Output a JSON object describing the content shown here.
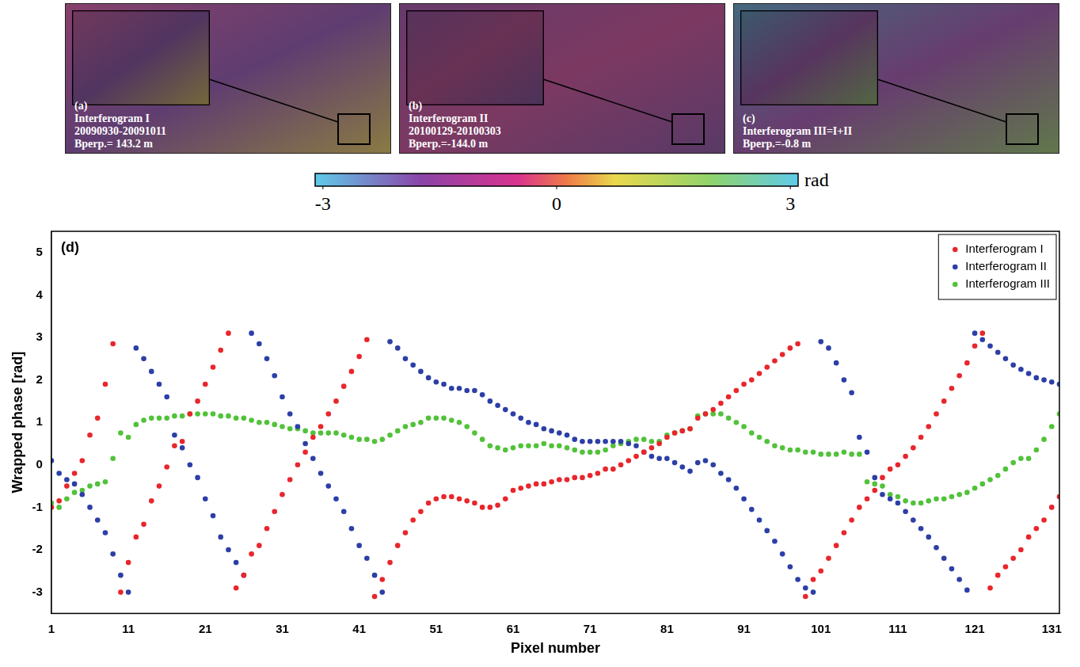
{
  "panels": [
    {
      "label": "(a)",
      "lines": [
        "Interferogram I",
        "20090930-20091011",
        "Bperp.= 143.2 m"
      ]
    },
    {
      "label": "(b)",
      "lines": [
        "Interferogram II",
        "20100129-20100303",
        "Bperp.=-144.0 m"
      ]
    },
    {
      "label": "(c)",
      "lines": [
        "Interferogram III=I+II",
        "Bperp.=-0.8 m"
      ]
    }
  ],
  "colorbar": {
    "range": [
      -3.1,
      3.1
    ],
    "ticks": [
      -3,
      0,
      3
    ],
    "label": "rad"
  },
  "chart_data": {
    "type": "scatter",
    "panel_label": "(d)",
    "x_label": "Pixel number",
    "y_label": "Wrapped phase [rad]",
    "x": [
      1,
      2,
      3,
      4,
      5,
      6,
      7,
      8,
      9,
      10,
      11,
      12,
      13,
      14,
      15,
      16,
      17,
      18,
      19,
      20,
      21,
      22,
      23,
      24,
      25,
      26,
      27,
      28,
      29,
      30,
      31,
      32,
      33,
      34,
      35,
      36,
      37,
      38,
      39,
      40,
      41,
      42,
      43,
      44,
      45,
      46,
      47,
      48,
      49,
      50,
      51,
      52,
      53,
      54,
      55,
      56,
      57,
      58,
      59,
      60,
      61,
      62,
      63,
      64,
      65,
      66,
      67,
      68,
      69,
      70,
      71,
      72,
      73,
      74,
      75,
      76,
      77,
      78,
      79,
      80,
      81,
      82,
      83,
      84,
      85,
      86,
      87,
      88,
      89,
      90,
      91,
      92,
      93,
      94,
      95,
      96,
      97,
      98,
      99,
      100,
      101,
      102,
      103,
      104,
      105,
      106,
      107,
      108,
      109,
      110,
      111,
      112,
      113,
      114,
      115,
      116,
      117,
      118,
      119,
      120,
      121,
      122,
      123,
      124,
      125,
      126,
      127,
      128,
      129,
      130,
      131,
      132
    ],
    "series": [
      {
        "name": "Interferogram I",
        "color": "#e8262c",
        "values": [
          -1.0,
          -0.85,
          -0.5,
          -0.2,
          0.1,
          0.7,
          1.1,
          1.9,
          2.85,
          -3.0,
          -2.3,
          -1.7,
          -1.4,
          -0.85,
          -0.5,
          -0.05,
          0.45,
          0.55,
          1.2,
          1.5,
          1.9,
          2.3,
          2.7,
          3.1,
          -2.9,
          -2.6,
          -2.1,
          -1.9,
          -1.5,
          -1.1,
          -0.7,
          -0.35,
          0.0,
          0.3,
          0.65,
          0.9,
          1.2,
          1.5,
          1.85,
          2.2,
          2.55,
          2.95,
          -3.1,
          -2.7,
          -2.3,
          -1.9,
          -1.6,
          -1.3,
          -1.1,
          -0.9,
          -0.8,
          -0.75,
          -0.75,
          -0.8,
          -0.85,
          -0.9,
          -1.0,
          -1.0,
          -0.95,
          -0.8,
          -0.6,
          -0.55,
          -0.5,
          -0.45,
          -0.45,
          -0.4,
          -0.35,
          -0.35,
          -0.3,
          -0.3,
          -0.25,
          -0.2,
          -0.1,
          -0.1,
          0.0,
          0.1,
          0.2,
          0.3,
          0.4,
          0.5,
          0.65,
          0.75,
          0.8,
          0.85,
          1.1,
          1.2,
          1.3,
          1.45,
          1.6,
          1.75,
          1.9,
          2.0,
          2.15,
          2.3,
          2.45,
          2.6,
          2.75,
          2.85,
          -3.1,
          -2.7,
          -2.5,
          -2.2,
          -1.9,
          -1.6,
          -1.3,
          -1.0,
          -0.8,
          -0.6,
          -0.3,
          -0.1,
          0.0,
          0.2,
          0.4,
          0.65,
          0.9,
          1.2,
          1.5,
          1.8,
          2.1,
          2.4,
          2.8,
          3.1,
          -2.9,
          -2.6,
          -2.4,
          -2.2,
          -2.0,
          -1.7,
          -1.5,
          -1.3,
          -1.0,
          -0.75
        ]
      },
      {
        "name": "Interferogram II",
        "color": "#2c3fa6",
        "values": [
          0.1,
          -0.2,
          -0.35,
          -0.45,
          -0.7,
          -1.0,
          -1.3,
          -1.6,
          -2.1,
          -2.6,
          -3.0,
          2.75,
          2.5,
          2.2,
          1.9,
          1.6,
          0.7,
          0.4,
          0.0,
          -0.3,
          -0.8,
          -1.2,
          -1.7,
          -2.0,
          -2.3,
          -2.6,
          3.1,
          2.85,
          2.5,
          2.1,
          1.6,
          1.2,
          0.9,
          0.5,
          0.15,
          -0.2,
          -0.5,
          -0.8,
          -1.1,
          -1.5,
          -1.9,
          -2.2,
          -2.6,
          -3.0,
          2.9,
          2.75,
          2.5,
          2.35,
          2.2,
          2.05,
          1.95,
          1.9,
          1.8,
          1.8,
          1.75,
          1.75,
          1.65,
          1.5,
          1.4,
          1.3,
          1.2,
          1.1,
          1.0,
          0.95,
          0.85,
          0.8,
          0.75,
          0.7,
          0.6,
          0.55,
          0.55,
          0.55,
          0.55,
          0.55,
          0.55,
          0.5,
          0.45,
          0.3,
          0.2,
          0.15,
          0.15,
          0.05,
          -0.05,
          -0.15,
          0.05,
          0.1,
          0.0,
          -0.2,
          -0.35,
          -0.55,
          -0.8,
          -1.05,
          -1.3,
          -1.55,
          -1.8,
          -2.1,
          -2.4,
          -2.7,
          -2.9,
          -3.0,
          2.9,
          2.75,
          2.4,
          2.0,
          1.7,
          0.65,
          0.3,
          -0.3,
          -0.7,
          -0.8,
          -0.9,
          -1.1,
          -1.3,
          -1.5,
          -1.7,
          -1.95,
          -2.2,
          -2.45,
          -2.7,
          -2.95,
          3.1,
          2.95,
          2.8,
          2.65,
          2.5,
          2.35,
          2.25,
          2.15,
          2.05,
          2.0,
          1.95,
          1.9
        ]
      },
      {
        "name": "Interferogram III",
        "color": "#52c23a",
        "values": [
          -0.9,
          -1.0,
          -0.8,
          -0.65,
          -0.6,
          -0.5,
          -0.45,
          -0.4,
          0.15,
          0.75,
          0.65,
          0.95,
          1.05,
          1.1,
          1.1,
          1.1,
          1.15,
          1.15,
          1.2,
          1.2,
          1.2,
          1.2,
          1.15,
          1.15,
          1.1,
          1.1,
          1.05,
          1.0,
          1.0,
          0.95,
          0.9,
          0.85,
          0.85,
          0.8,
          0.75,
          0.75,
          0.75,
          0.75,
          0.7,
          0.65,
          0.6,
          0.6,
          0.55,
          0.6,
          0.7,
          0.8,
          0.9,
          0.95,
          1.0,
          1.1,
          1.1,
          1.1,
          1.05,
          1.0,
          0.9,
          0.75,
          0.6,
          0.45,
          0.4,
          0.35,
          0.4,
          0.45,
          0.45,
          0.45,
          0.5,
          0.45,
          0.45,
          0.4,
          0.35,
          0.3,
          0.3,
          0.3,
          0.35,
          0.45,
          0.5,
          0.55,
          0.6,
          0.6,
          0.55,
          0.55,
          0.7,
          0.75,
          0.8,
          0.85,
          1.15,
          1.2,
          1.2,
          1.2,
          1.1,
          1.0,
          0.9,
          0.75,
          0.65,
          0.55,
          0.45,
          0.4,
          0.35,
          0.35,
          0.3,
          0.3,
          0.25,
          0.25,
          0.25,
          0.3,
          0.25,
          0.25,
          -0.4,
          -0.45,
          -0.5,
          -0.7,
          -0.75,
          -0.85,
          -0.9,
          -0.9,
          -0.85,
          -0.8,
          -0.8,
          -0.75,
          -0.7,
          -0.65,
          -0.55,
          -0.45,
          -0.35,
          -0.25,
          -0.1,
          0.05,
          0.15,
          0.15,
          0.35,
          0.6,
          0.9,
          1.2
        ]
      }
    ],
    "xlim": [
      1,
      132
    ],
    "ylim": [
      -3.5,
      5.5
    ],
    "xticks": [
      1,
      11,
      21,
      31,
      41,
      51,
      61,
      71,
      81,
      91,
      101,
      111,
      121,
      131
    ],
    "yticks": [
      -3,
      -2,
      -1,
      0,
      1,
      2,
      3,
      4,
      5
    ],
    "grid": false,
    "legend": "upper right",
    "marker": "circle"
  }
}
